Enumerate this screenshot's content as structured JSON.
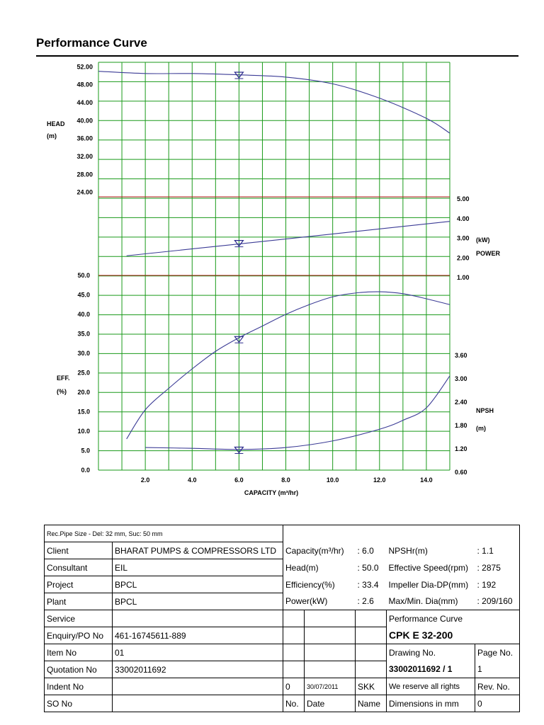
{
  "page": {
    "title": "Performance Curve"
  },
  "chart_data": {
    "type": "line",
    "x_axis": {
      "label": "CAPACITY (m³/hr)",
      "range": [
        0,
        15
      ],
      "ticks": [
        "2.0",
        "4.0",
        "6.0",
        "8.0",
        "10.0",
        "12.0",
        "14.0"
      ]
    },
    "panels": {
      "head": {
        "label_line1": "HEAD",
        "label_line2": "(m)",
        "range": [
          23,
          53
        ],
        "ticks": [
          "52.00",
          "48.00",
          "44.00",
          "40.00",
          "36.00",
          "32.00",
          "28.00",
          "24.00"
        ],
        "series": [
          {
            "x": [
              0,
              2,
              4,
              6,
              8,
              10,
              12,
              14,
              15
            ],
            "y": [
              51.0,
              50.5,
              50.5,
              50.2,
              49.7,
              48.2,
              45.0,
              40.5,
              37.2
            ]
          }
        ]
      },
      "power": {
        "label_line1": "(kW)",
        "label_line2": "POWER",
        "range": [
          1.0,
          5.0
        ],
        "ticks": [
          "5.00",
          "4.00",
          "3.00",
          "2.00",
          "1.00"
        ],
        "series": [
          {
            "x": [
              1.2,
              6,
              15
            ],
            "y": [
              2.0,
              2.6,
              3.75
            ]
          }
        ]
      },
      "efficiency": {
        "label_line1": "EFF.",
        "label_line2": "(%)",
        "range": [
          0,
          50
        ],
        "ticks": [
          "50.0",
          "45.0",
          "40.0",
          "35.0",
          "30.0",
          "25.0",
          "20.0",
          "15.0",
          "10.0",
          "5.0",
          "0.0"
        ],
        "series": [
          {
            "x": [
              1.2,
              2,
              3,
              4,
              5,
              6,
              7,
              8,
              9,
              10,
              11,
              12,
              13,
              14,
              15
            ],
            "y": [
              8.0,
              15.5,
              21.0,
              26.0,
              30.5,
              34.0,
              37.0,
              40.0,
              42.5,
              44.5,
              45.5,
              45.8,
              45.3,
              44.0,
              42.5
            ]
          }
        ]
      },
      "npsh": {
        "label_line1": "NPSH",
        "label_line2": "(m)",
        "range": [
          0.6,
          3.6
        ],
        "ticks": [
          "3.60",
          "3.00",
          "2.40",
          "1.80",
          "1.20",
          "0.60"
        ],
        "series": [
          {
            "x": [
              2,
              4,
              6,
              8,
              10,
              12,
              13,
              14,
              15
            ],
            "y": [
              1.18,
              1.16,
              1.13,
              1.18,
              1.35,
              1.65,
              1.88,
              2.2,
              3.02
            ]
          }
        ]
      }
    },
    "duty_point": {
      "capacity": 6.0,
      "head": 50.0,
      "efficiency": 33.4,
      "power": 2.6,
      "npsh": 1.1
    }
  },
  "table": {
    "pipe_size": "Rec.Pipe Size - Del: 32 mm, Suc: 50  mm",
    "rows": [
      {
        "label": "Client",
        "value": "BHARAT PUMPS & COMPRESSORS LTD"
      },
      {
        "label": "Consultant",
        "value": "EIL"
      },
      {
        "label": "Project",
        "value": "BPCL"
      },
      {
        "label": "Plant",
        "value": "BPCL"
      },
      {
        "label": "Service",
        "value": ""
      },
      {
        "label": "Enquiry/PO No",
        "value": "461-16745611-889"
      },
      {
        "label": "Item No",
        "value": "01"
      },
      {
        "label": "Quotation No",
        "value": "33002011692"
      },
      {
        "label": "Indent No",
        "value": ""
      },
      {
        "label": "SO No",
        "value": ""
      }
    ],
    "specs": [
      {
        "label": "Capacity(m³/hr)",
        "value": ": 6.0",
        "label2": "NPSHr(m)",
        "value2": ": 1.1"
      },
      {
        "label": "Head(m)",
        "value": ": 50.0",
        "label2": "Effective Speed(rpm)",
        "value2": ": 2875"
      },
      {
        "label": "Efficiency(%)",
        "value": ": 33.4",
        "label2": "Impeller Dia-DP(mm)",
        "value2": ": 192"
      },
      {
        "label": "Power(kW)",
        "value": ": 2.6",
        "label2": "Max/Min. Dia(mm)",
        "value2": ": 209/160"
      }
    ],
    "perf_label": "Performance Curve",
    "model": "CPK E 32-200",
    "drawing_no_label": "Drawing No.",
    "page_no_label": "Page No.",
    "drawing_no": "33002011692 / 1",
    "page_no": "1",
    "rev_num": "0",
    "rev_date": "30/07/2011",
    "rev_name": "SKK",
    "rights": "We reserve all rights",
    "rev_no_label": "Rev. No.",
    "no_label": "No.",
    "date_label": "Date",
    "name_label": "Name",
    "dims": "Dimensions in mm",
    "rev_value": "0"
  }
}
